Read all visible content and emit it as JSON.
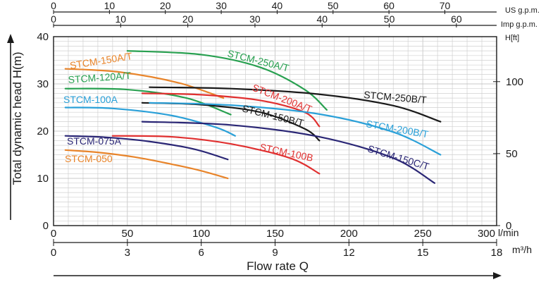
{
  "chart_data": {
    "type": "line",
    "xlabel": "Flow rate Q",
    "ylabel": "Total dynamic head H(m)",
    "x_unit": "l/min",
    "x_unit_m3h": "m³/h",
    "x_unit_usgpm": "US g.p.m.",
    "x_unit_impgpm": "Imp g.p.m.",
    "y_right_unit": "H[ft]",
    "xlim": [
      0,
      300
    ],
    "ylim": [
      0,
      40
    ],
    "grid": true,
    "x_ticks": [
      "0",
      "50",
      "100",
      "150",
      "200",
      "250",
      "300"
    ],
    "x_ticks_m3h": [
      "0",
      "3",
      "6",
      "9",
      "12",
      "15",
      "18"
    ],
    "x_ticks_usgpm": [
      "0",
      "10",
      "20",
      "30",
      "40",
      "50",
      "60",
      "70"
    ],
    "x_ticks_impgpm": [
      "0",
      "10",
      "20",
      "30",
      "40",
      "50",
      "60"
    ],
    "y_ticks": [
      "0",
      "10",
      "20",
      "30",
      "40"
    ],
    "y_ticks_ft": [
      "0",
      "50",
      "100"
    ],
    "series": [
      {
        "name": "STCM-050",
        "color": "#e8842a",
        "x": [
          8,
          30,
          55,
          80,
          100,
          118
        ],
        "y": [
          16,
          15.5,
          14.5,
          13,
          11.6,
          10
        ]
      },
      {
        "name": "STCM-075A",
        "color": "#2a2675",
        "x": [
          8,
          35,
          65,
          95,
          118
        ],
        "y": [
          19,
          18.7,
          17.8,
          16.2,
          14
        ]
      },
      {
        "name": "STCM-100A",
        "color": "#2aa0d8",
        "x": [
          8,
          40,
          80,
          110,
          123
        ],
        "y": [
          25,
          24.8,
          23.3,
          20.8,
          19
        ]
      },
      {
        "name": "STCM-120A/T",
        "color": "#28a050",
        "x": [
          8,
          50,
          90,
          120
        ],
        "y": [
          29,
          28.8,
          27,
          23.5
        ]
      },
      {
        "name": "STCM-150A/T",
        "color": "#e8842a",
        "x": [
          8,
          45,
          85,
          115
        ],
        "y": [
          33.2,
          32.5,
          30.2,
          27
        ]
      },
      {
        "name": "STCM-250A/T",
        "color": "#28a050",
        "x": [
          50,
          100,
          140,
          170,
          185
        ],
        "y": [
          37,
          36.2,
          33.5,
          28.8,
          24.5
        ]
      },
      {
        "name": "STCM-200A/T",
        "color": "#e03030",
        "x": [
          60,
          100,
          140,
          170,
          180
        ],
        "y": [
          28,
          27.7,
          26.5,
          24,
          21
        ]
      },
      {
        "name": "STCM-150B/T",
        "color": "#1a1a1a",
        "x": [
          60,
          100,
          140,
          170,
          180
        ],
        "y": [
          26,
          25.6,
          24,
          20.5,
          18
        ]
      },
      {
        "name": "STCM-100B",
        "color": "#e03030",
        "x": [
          40,
          80,
          120,
          160,
          180
        ],
        "y": [
          19,
          18.8,
          17.3,
          14.3,
          11
        ]
      },
      {
        "name": "STCM-250B/T",
        "color": "#1a1a1a",
        "x": [
          65,
          120,
          180,
          230,
          262
        ],
        "y": [
          29.3,
          29,
          27.8,
          25.4,
          22
        ]
      },
      {
        "name": "STCM-200B/T",
        "color": "#2aa0d8",
        "x": [
          65,
          120,
          180,
          230,
          262
        ],
        "y": [
          26,
          25.5,
          23.6,
          19.8,
          15
        ]
      },
      {
        "name": "STCM-150C/T",
        "color": "#2a2675",
        "x": [
          60,
          120,
          180,
          230,
          258
        ],
        "y": [
          22,
          21.3,
          18.8,
          14.3,
          9
        ]
      }
    ],
    "labels": [
      "STCM-250A/T",
      "STCM-150A/T",
      "STCM-120A/T",
      "STCM-200A/T",
      "STCM-250B/T",
      "STCM-100A",
      "STCM-150B/T",
      "STCM-200B/T",
      "STCM-075A",
      "STCM-150C/T",
      "STCM-100B",
      "STCM-050"
    ],
    "label_colors": [
      "#28a050",
      "#e8842a",
      "#28a050",
      "#e03030",
      "#1a1a1a",
      "#2aa0d8",
      "#1a1a1a",
      "#2aa0d8",
      "#2a2675",
      "#2a2675",
      "#e03030",
      "#e8842a"
    ]
  }
}
